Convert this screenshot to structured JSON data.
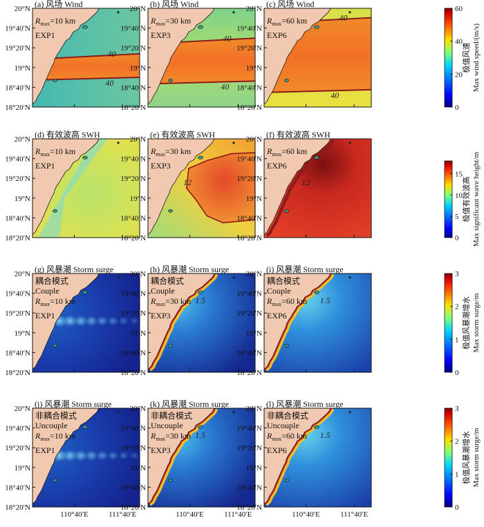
{
  "figure": {
    "colors": {
      "land": "#f1c9b0",
      "coast": "#1a1a1a",
      "contour": "#8b1a1a"
    },
    "lat_ticks": [
      "20°N",
      "19°40′N",
      "19°20′N",
      "19°N",
      "18°40′N",
      "18°20′N"
    ],
    "lon_ticks": [
      "110°40′E",
      "111°40′E"
    ]
  },
  "chart_data": [
    {
      "type": "heatmap",
      "row": "wind",
      "colorbar": {
        "ticks": [
          "60",
          "40",
          "20",
          "0"
        ],
        "label_cn": "极值风速",
        "label_en": "Max wind speed/(m/s)",
        "range": [
          0,
          60
        ]
      },
      "panels": [
        {
          "title": "(a) 风场 Wind",
          "rmax_sym": "R",
          "rmax_sub": "max",
          "rmax_val": "=10 km",
          "exp": "EXP1",
          "band_halfwidth_km": 10,
          "contours": [
            "40",
            "40"
          ]
        },
        {
          "title": "(b) 风场 Wind",
          "rmax_sym": "R",
          "rmax_sub": "max",
          "rmax_val": "=30 km",
          "exp": "EXP3",
          "band_halfwidth_km": 30,
          "contours": [
            "40",
            "40"
          ]
        },
        {
          "title": "(c) 风场 Wind",
          "rmax_sym": "R",
          "rmax_sub": "max",
          "rmax_val": "=60 km",
          "exp": "EXP6",
          "band_halfwidth_km": 60,
          "contours": [
            "40",
            "40"
          ]
        }
      ]
    },
    {
      "type": "heatmap",
      "row": "swh",
      "colorbar": {
        "ticks": [
          "15",
          "10",
          "5",
          "0"
        ],
        "label_cn": "极值有效波高",
        "label_en": "Max significant wave height/m",
        "range": [
          0,
          18
        ]
      },
      "panels": [
        {
          "title": "(d) 有效波高 SWH",
          "rmax_sym": "R",
          "rmax_sub": "max",
          "rmax_val": "=10 km",
          "exp": "EXP1",
          "contours": []
        },
        {
          "title": "(e) 有效波高 SWH",
          "rmax_sym": "R",
          "rmax_sub": "max",
          "rmax_val": "=30 km",
          "exp": "EXP3",
          "contours": [
            "12"
          ]
        },
        {
          "title": "(f) 有效波高 SWH",
          "rmax_sym": "R",
          "rmax_sub": "max",
          "rmax_val": "=60 km",
          "exp": "EXP6",
          "contours": [
            "12"
          ]
        }
      ]
    },
    {
      "type": "heatmap",
      "row": "surge_couple",
      "colorbar": {
        "ticks": [
          "3",
          "2",
          "1",
          "0"
        ],
        "label_cn": "极值风暴潮增水",
        "label_en": "Max storm surge/m",
        "range": [
          0,
          3
        ]
      },
      "panels": [
        {
          "title": "(g) 风暴潮 Storm surge",
          "mode_cn": "耦合模式",
          "mode_en": "Couple",
          "rmax_sym": "R",
          "rmax_sub": "max",
          "rmax_val": "=10 km",
          "exp": "EXP1",
          "contours": []
        },
        {
          "title": "(h) 风暴潮 Storm surge",
          "mode_cn": "耦合模式",
          "mode_en": "Couple",
          "rmax_sym": "R",
          "rmax_sub": "max",
          "rmax_val": "=30 km",
          "exp": "EXP3",
          "contours": [
            "1.5"
          ]
        },
        {
          "title": "(i) 风暴潮 Storm surge",
          "mode_cn": "耦合模式",
          "mode_en": "Couple",
          "rmax_sym": "R",
          "rmax_sub": "max",
          "rmax_val": "=60 km",
          "exp": "EXP6",
          "contours": [
            "1.5"
          ]
        }
      ]
    },
    {
      "type": "heatmap",
      "row": "surge_uncouple",
      "colorbar": {
        "ticks": [
          "3",
          "2",
          "1",
          "0"
        ],
        "label_cn": "极值风暴潮增水",
        "label_en": "Max storm surge/m",
        "range": [
          0,
          3
        ]
      },
      "panels": [
        {
          "title": "(j) 风暴潮 Storm surge",
          "mode_cn": "非耦合模式",
          "mode_en": "Uncouple",
          "rmax_sym": "R",
          "rmax_sub": "max",
          "rmax_val": "=10 km",
          "exp": "EXP1",
          "contours": []
        },
        {
          "title": "(k) 风暴潮 Storm surge",
          "mode_cn": "非耦合模式",
          "mode_en": "Uncouple",
          "rmax_sym": "R",
          "rmax_sub": "max",
          "rmax_val": "=30 km",
          "exp": "EXP3",
          "contours": [
            "1.5"
          ]
        },
        {
          "title": "(l) 风暴潮 Storm surge",
          "mode_cn": "非耦合模式",
          "mode_en": "Uncouple",
          "rmax_sym": "R",
          "rmax_sub": "max",
          "rmax_val": "=60 km",
          "exp": "EXP6",
          "contours": [
            "1.5"
          ]
        }
      ]
    }
  ]
}
